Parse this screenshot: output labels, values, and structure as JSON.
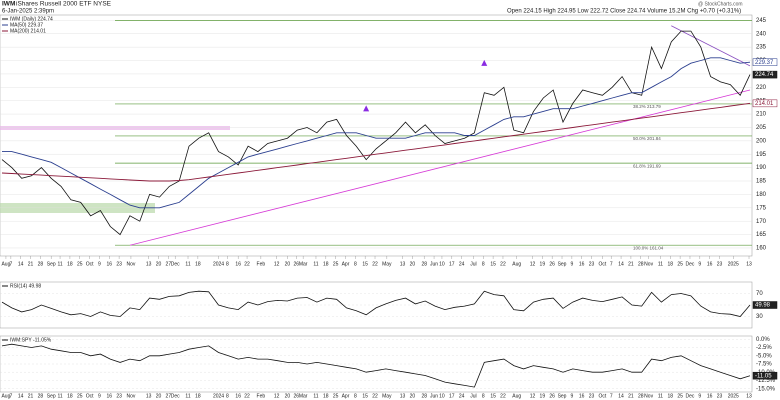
{
  "header": {
    "ticker": "IWM",
    "name": "iShares Russell 2000 ETF NYSE",
    "date": "6-Jan-2025 2:39pm",
    "quote": "Open 224.15  High 224.95  Low 222.72  Close 224.74  Volume 15.2M  Chg +0.70 (+0.31%)",
    "credit": "@ StockCharts.com"
  },
  "chart_data": [
    {
      "type": "line",
      "panel": "price",
      "ylim": [
        157,
        247
      ],
      "yticks": [
        160,
        165,
        170,
        175,
        180,
        185,
        190,
        195,
        200,
        205,
        210,
        215,
        220,
        225,
        230,
        235,
        240,
        245
      ],
      "xticks": [
        {
          "value": 0.4,
          "label": "Aug"
        },
        {
          "value": 0.9,
          "label": "7"
        },
        {
          "value": 1.9,
          "label": "14"
        },
        {
          "value": 2.9,
          "label": "21"
        },
        {
          "value": 3.9,
          "label": "28"
        },
        {
          "value": 5.0,
          "label": "Sep"
        },
        {
          "value": 5.9,
          "label": "11"
        },
        {
          "value": 6.9,
          "label": "18"
        },
        {
          "value": 7.9,
          "label": "25"
        },
        {
          "value": 8.9,
          "label": "Oct"
        },
        {
          "value": 9.9,
          "label": "9"
        },
        {
          "value": 10.9,
          "label": "16"
        },
        {
          "value": 11.9,
          "label": "23"
        },
        {
          "value": 13.1,
          "label": "Nov"
        },
        {
          "value": 14.9,
          "label": "13"
        },
        {
          "value": 15.9,
          "label": "20"
        },
        {
          "value": 16.9,
          "label": "27"
        },
        {
          "value": 17.6,
          "label": "Dec"
        },
        {
          "value": 18.9,
          "label": "11"
        },
        {
          "value": 19.9,
          "label": "18"
        },
        {
          "value": 22.0,
          "label": "2024"
        },
        {
          "value": 22.9,
          "label": "8"
        },
        {
          "value": 24.0,
          "label": "16"
        },
        {
          "value": 24.9,
          "label": "22"
        },
        {
          "value": 26.3,
          "label": "Feb"
        },
        {
          "value": 27.9,
          "label": "12"
        },
        {
          "value": 29.0,
          "label": "20"
        },
        {
          "value": 29.9,
          "label": "26"
        },
        {
          "value": 30.6,
          "label": "Mar"
        },
        {
          "value": 31.9,
          "label": "11"
        },
        {
          "value": 32.9,
          "label": "18"
        },
        {
          "value": 33.9,
          "label": "25"
        },
        {
          "value": 34.9,
          "label": "Apr"
        },
        {
          "value": 35.9,
          "label": "8"
        },
        {
          "value": 36.9,
          "label": "15"
        },
        {
          "value": 37.9,
          "label": "22"
        },
        {
          "value": 39.1,
          "label": "May"
        },
        {
          "value": 40.7,
          "label": "13"
        },
        {
          "value": 41.7,
          "label": "20"
        },
        {
          "value": 42.9,
          "label": "28"
        },
        {
          "value": 43.9,
          "label": "Jun"
        },
        {
          "value": 44.7,
          "label": "10"
        },
        {
          "value": 45.7,
          "label": "17"
        },
        {
          "value": 46.7,
          "label": "24"
        },
        {
          "value": 47.9,
          "label": "Jul"
        },
        {
          "value": 48.9,
          "label": "8"
        },
        {
          "value": 49.9,
          "label": "15"
        },
        {
          "value": 50.9,
          "label": "22"
        },
        {
          "value": 52.3,
          "label": "Aug"
        },
        {
          "value": 53.9,
          "label": "12"
        },
        {
          "value": 54.9,
          "label": "19"
        },
        {
          "value": 55.9,
          "label": "26"
        },
        {
          "value": 56.9,
          "label": "Sep"
        },
        {
          "value": 57.9,
          "label": "9"
        },
        {
          "value": 58.9,
          "label": "16"
        },
        {
          "value": 59.9,
          "label": "23"
        },
        {
          "value": 61.0,
          "label": "Oct"
        },
        {
          "value": 61.9,
          "label": "7"
        },
        {
          "value": 62.9,
          "label": "14"
        },
        {
          "value": 63.9,
          "label": "21"
        },
        {
          "value": 64.9,
          "label": "28"
        },
        {
          "value": 65.7,
          "label": "Nov"
        },
        {
          "value": 66.9,
          "label": "11"
        },
        {
          "value": 67.9,
          "label": "18"
        },
        {
          "value": 68.9,
          "label": "25"
        },
        {
          "value": 69.9,
          "label": "Dec"
        },
        {
          "value": 70.9,
          "label": "9"
        },
        {
          "value": 71.9,
          "label": "16"
        },
        {
          "value": 72.9,
          "label": "23"
        },
        {
          "value": 74.3,
          "label": "2025"
        },
        {
          "value": 75.9,
          "label": "13"
        }
      ],
      "series": [
        {
          "name": "IWM (Daily) 224.74",
          "color": "#111111",
          "values": [
            193,
            190,
            186,
            187,
            190,
            186,
            183,
            178,
            177,
            172,
            174,
            168,
            165,
            172,
            170,
            180,
            179,
            183,
            185,
            198,
            201,
            203,
            196,
            194,
            191,
            198,
            196,
            199,
            200,
            201,
            204,
            205,
            203,
            207,
            208,
            202,
            198,
            193,
            197,
            200,
            203,
            207,
            203,
            206,
            202,
            199,
            200,
            201,
            203,
            218,
            217,
            220,
            204,
            203,
            211,
            216,
            219,
            207,
            214,
            219,
            218,
            217,
            220,
            224,
            218,
            217,
            235,
            227,
            237,
            241,
            241,
            235,
            224,
            222,
            221,
            217,
            224.74
          ]
        },
        {
          "name": "MA(50) 229.37",
          "color": "#2b3f8f",
          "values": [
            196,
            196,
            195,
            194,
            193,
            192,
            190,
            188,
            186,
            184,
            182,
            180,
            178,
            176,
            175,
            175,
            175,
            176,
            177,
            180,
            183,
            186,
            188,
            190,
            192,
            194,
            195,
            196,
            197,
            198,
            199,
            200,
            201,
            202,
            203,
            203,
            203,
            202,
            201,
            201,
            201,
            201,
            202,
            203,
            203,
            203,
            203,
            202,
            202,
            204,
            206,
            208,
            209,
            209,
            210,
            211,
            212,
            212,
            212,
            213,
            214,
            215,
            216,
            217,
            218,
            218,
            220,
            222,
            224,
            227,
            229,
            230,
            231,
            231,
            230,
            229,
            229.37
          ]
        },
        {
          "name": "MA(200) 214.01",
          "color": "#8b1a3a",
          "values": [
            188,
            187.8,
            187.6,
            187.4,
            187.2,
            187,
            186.8,
            186.6,
            186.4,
            186.2,
            186,
            185.8,
            185.6,
            185.4,
            185.2,
            185,
            185,
            185,
            185.2,
            185.5,
            186,
            186.5,
            187,
            187.5,
            188,
            188.5,
            189,
            189.5,
            190,
            190.5,
            191,
            191.5,
            192,
            192.5,
            193,
            193.5,
            194,
            194.5,
            195,
            195.5,
            196,
            196.5,
            197,
            197.5,
            198,
            198.5,
            199,
            199.5,
            200,
            200.5,
            201,
            201.5,
            202,
            202.5,
            203,
            203.5,
            204,
            204.5,
            205,
            205.5,
            206,
            206.5,
            207,
            207.5,
            208,
            208.5,
            209,
            209.5,
            210,
            210.5,
            211,
            211.5,
            212,
            212.5,
            213,
            213.5,
            214.01
          ]
        }
      ],
      "fib_levels": [
        {
          "value": 244.98
        },
        {
          "value": 213.79,
          "label": "38.2% 213.79"
        },
        {
          "value": 201.84,
          "label": "50.0% 201.84"
        },
        {
          "value": 191.69,
          "label": "61.8% 191.69"
        },
        {
          "value": 161.04,
          "label": "100.0% 161.04"
        }
      ],
      "fib_color": "#5a9a3a",
      "trendlines": [
        {
          "color": "#d63ad6",
          "from": [
            13,
            161
          ],
          "to": [
            76,
            219
          ]
        },
        {
          "color": "#8a4fc0",
          "from": [
            68,
            243
          ],
          "to": [
            76,
            228
          ]
        }
      ],
      "signals": [
        {
          "x": 37,
          "y": 211
        },
        {
          "x": 49,
          "y": 228
        }
      ],
      "signal_color": "#8a2be2"
    },
    {
      "type": "line",
      "panel": "rsi",
      "ylim": [
        10,
        90
      ],
      "yticks": [
        30,
        50,
        70
      ],
      "series": [
        {
          "name": "RSI(14) 49.98",
          "color": "#111111",
          "values": [
            55,
            45,
            38,
            42,
            50,
            44,
            38,
            33,
            35,
            30,
            38,
            32,
            30,
            45,
            42,
            62,
            60,
            65,
            66,
            72,
            74,
            73,
            50,
            45,
            42,
            55,
            50,
            56,
            58,
            57,
            62,
            63,
            55,
            62,
            60,
            45,
            40,
            33,
            45,
            52,
            58,
            62,
            52,
            57,
            48,
            42,
            46,
            48,
            52,
            74,
            68,
            66,
            42,
            40,
            55,
            60,
            62,
            44,
            55,
            62,
            58,
            56,
            60,
            64,
            50,
            48,
            72,
            55,
            68,
            70,
            66,
            48,
            38,
            35,
            34,
            30,
            49.98
          ]
        }
      ]
    },
    {
      "type": "line",
      "panel": "ratio",
      "ylim": [
        -16,
        1
      ],
      "yticks": [
        {
          "value": 0,
          "label": "0.0%"
        },
        {
          "value": -2.5,
          "label": "-2.5%"
        },
        {
          "value": -5,
          "label": "-5.0%"
        },
        {
          "value": -7.5,
          "label": "-7.5%"
        },
        {
          "value": -10,
          "label": "-10.0%"
        },
        {
          "value": -12.5,
          "label": "-12.5%"
        },
        {
          "value": -15,
          "label": "-15.0%"
        }
      ],
      "series": [
        {
          "name": "IWM:SPY -11.05%",
          "color": "#111111",
          "values": [
            -2,
            -1.5,
            -2,
            -2.5,
            -2,
            -3,
            -3.5,
            -4,
            -4,
            -5,
            -4.5,
            -6,
            -7,
            -6,
            -6.5,
            -5,
            -5,
            -4.5,
            -4,
            -3,
            -2.5,
            -2,
            -4,
            -5,
            -6,
            -5.5,
            -6,
            -6,
            -6.5,
            -7,
            -7,
            -7.5,
            -7,
            -7.5,
            -8,
            -8.5,
            -9,
            -10,
            -9.5,
            -9,
            -9.5,
            -10,
            -10.5,
            -11,
            -12,
            -13,
            -13.5,
            -14,
            -14.5,
            -7,
            -6.5,
            -6,
            -8,
            -9,
            -8,
            -8.5,
            -9,
            -10,
            -9,
            -9.5,
            -10,
            -10,
            -9.5,
            -9,
            -10,
            -10,
            -6,
            -6.5,
            -5.5,
            -5,
            -6.5,
            -8,
            -9,
            -10,
            -11,
            -12,
            -11.05
          ]
        }
      ]
    }
  ]
}
